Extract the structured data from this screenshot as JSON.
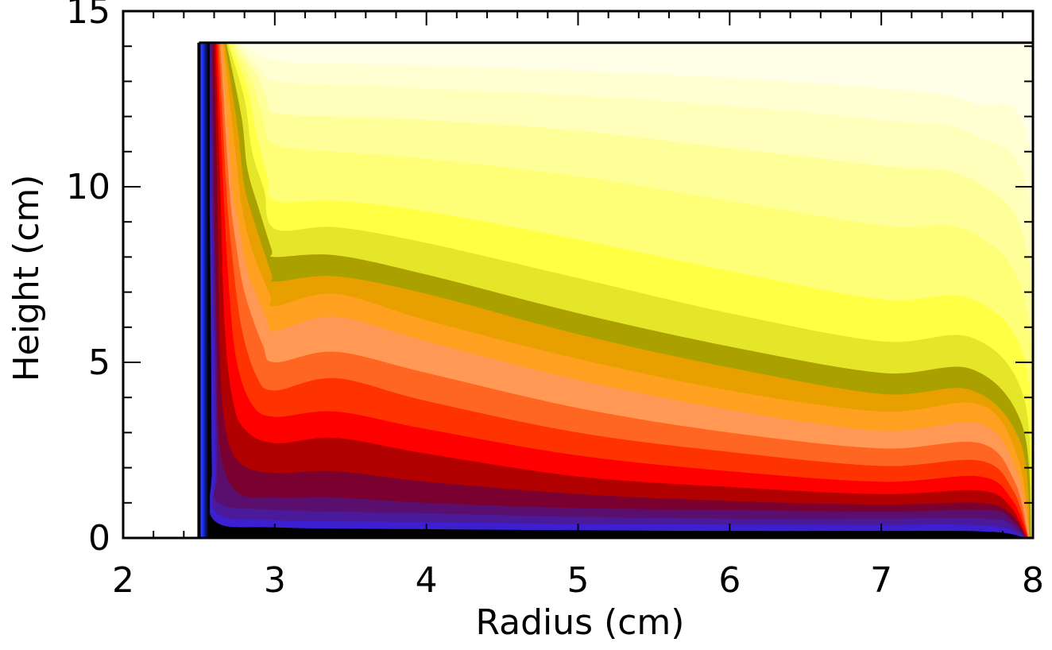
{
  "chart_data": {
    "type": "filled-contour",
    "xlabel": "Radius (cm)",
    "ylabel": "Height (cm)",
    "xlim": [
      2,
      8
    ],
    "ylim": [
      0,
      15
    ],
    "x_ticks": [
      {
        "value": 2,
        "label": "2"
      },
      {
        "value": 3,
        "label": "3"
      },
      {
        "value": 4,
        "label": "4"
      },
      {
        "value": 5,
        "label": "5"
      },
      {
        "value": 6,
        "label": "6"
      },
      {
        "value": 7,
        "label": "7"
      },
      {
        "value": 8,
        "label": "8"
      }
    ],
    "y_ticks": [
      {
        "value": 0,
        "label": "0"
      },
      {
        "value": 5,
        "label": "5"
      },
      {
        "value": 10,
        "label": "10"
      },
      {
        "value": 15,
        "label": "15"
      }
    ],
    "x_minor_step": 0.2,
    "y_minor_step": 1,
    "domain": {
      "r_inner": 2.5,
      "r_outer": 8.0,
      "z_bottom": 0,
      "z_top": 14.1
    },
    "grid": false,
    "legend": "none",
    "fill_colors": [
      "#000000",
      "#0a0a3a",
      "#0d1a8a",
      "#1530c8",
      "#2a3cff",
      "#3b1fd0",
      "#4a1a9a",
      "#5a0f6e",
      "#7a0030",
      "#b00000",
      "#ff0000",
      "#ff3300",
      "#ff6622",
      "#ff9955",
      "#ffa020",
      "#e8a000",
      "#aaa000",
      "#e5e52a",
      "#ffff44",
      "#ffff77",
      "#ffff99",
      "#ffffbb",
      "#ffffd2",
      "#ffffe8"
    ],
    "contours": [
      {
        "level": 0,
        "points": [
          [
            2.56,
            14.1
          ],
          [
            2.57,
            10
          ],
          [
            2.58,
            5
          ],
          [
            2.585,
            2
          ],
          [
            2.6,
            0.5
          ],
          [
            3,
            0.3
          ],
          [
            4,
            0.25
          ],
          [
            5,
            0.22
          ],
          [
            6,
            0.2
          ],
          [
            7,
            0.2
          ],
          [
            7.5,
            0.2
          ],
          [
            7.8,
            0.15
          ],
          [
            7.95,
            0
          ]
        ]
      },
      {
        "level": 1,
        "points": [
          [
            2.57,
            14.1
          ],
          [
            2.58,
            10
          ],
          [
            2.6,
            5
          ],
          [
            2.61,
            2
          ],
          [
            2.62,
            0.7
          ],
          [
            3,
            0.5
          ],
          [
            4,
            0.45
          ],
          [
            5,
            0.4
          ],
          [
            6,
            0.38
          ],
          [
            7,
            0.37
          ],
          [
            7.5,
            0.38
          ],
          [
            7.8,
            0.3
          ],
          [
            7.95,
            0
          ]
        ]
      },
      {
        "level": 2,
        "points": [
          [
            2.58,
            14.1
          ],
          [
            2.59,
            10
          ],
          [
            2.61,
            5
          ],
          [
            2.62,
            2
          ],
          [
            2.63,
            1
          ],
          [
            3,
            0.8
          ],
          [
            4,
            0.7
          ],
          [
            5,
            0.6
          ],
          [
            6,
            0.55
          ],
          [
            7,
            0.55
          ],
          [
            7.7,
            0.55
          ],
          [
            7.85,
            0.4
          ],
          [
            7.95,
            0
          ]
        ]
      },
      {
        "level": 3,
        "points": [
          [
            2.59,
            14.1
          ],
          [
            2.6,
            10
          ],
          [
            2.62,
            5
          ],
          [
            2.64,
            2.5
          ],
          [
            2.75,
            1.3
          ],
          [
            3,
            1.15
          ],
          [
            3.4,
            1.15
          ],
          [
            4,
            1
          ],
          [
            5,
            0.85
          ],
          [
            6,
            0.8
          ],
          [
            7,
            0.75
          ],
          [
            7.7,
            0.8
          ],
          [
            7.85,
            0.55
          ],
          [
            7.96,
            0
          ]
        ]
      },
      {
        "level": 4,
        "points": [
          [
            2.6,
            14.1
          ],
          [
            2.62,
            10
          ],
          [
            2.64,
            5
          ],
          [
            2.68,
            3
          ],
          [
            2.78,
            2.1
          ],
          [
            3,
            1.85
          ],
          [
            3.4,
            1.9
          ],
          [
            4,
            1.6
          ],
          [
            5,
            1.25
          ],
          [
            6,
            1.05
          ],
          [
            7,
            0.95
          ],
          [
            7.65,
            1.0
          ],
          [
            7.85,
            0.7
          ],
          [
            7.96,
            0
          ]
        ]
      },
      {
        "level": 5,
        "points": [
          [
            2.61,
            14.1
          ],
          [
            2.64,
            10
          ],
          [
            2.67,
            6
          ],
          [
            2.72,
            4
          ],
          [
            2.8,
            3.1
          ],
          [
            3,
            2.7
          ],
          [
            3.4,
            2.85
          ],
          [
            4,
            2.4
          ],
          [
            5,
            1.75
          ],
          [
            6,
            1.45
          ],
          [
            7,
            1.25
          ],
          [
            7.65,
            1.35
          ],
          [
            7.85,
            0.9
          ],
          [
            7.96,
            0
          ]
        ]
      },
      {
        "level": 6,
        "points": [
          [
            2.62,
            14.1
          ],
          [
            2.66,
            10
          ],
          [
            2.7,
            7
          ],
          [
            2.75,
            5
          ],
          [
            2.85,
            3.8
          ],
          [
            3,
            3.45
          ],
          [
            3.4,
            3.6
          ],
          [
            4,
            3.1
          ],
          [
            5,
            2.35
          ],
          [
            6,
            1.9
          ],
          [
            7,
            1.6
          ],
          [
            7.65,
            1.75
          ],
          [
            7.86,
            1.1
          ],
          [
            7.97,
            0
          ]
        ]
      },
      {
        "level": 7,
        "points": [
          [
            2.63,
            14.1
          ],
          [
            2.68,
            10
          ],
          [
            2.72,
            8
          ],
          [
            2.78,
            6
          ],
          [
            2.88,
            4.6
          ],
          [
            3,
            4.2
          ],
          [
            3.4,
            4.55
          ],
          [
            4,
            3.9
          ],
          [
            5,
            3.0
          ],
          [
            6,
            2.45
          ],
          [
            7,
            2.05
          ],
          [
            7.65,
            2.2
          ],
          [
            7.87,
            1.35
          ],
          [
            7.97,
            0
          ]
        ]
      },
      {
        "level": 8,
        "points": [
          [
            2.64,
            14.1
          ],
          [
            2.7,
            10
          ],
          [
            2.74,
            8.5
          ],
          [
            2.8,
            7
          ],
          [
            2.92,
            5.5
          ],
          [
            3,
            5.0
          ],
          [
            3.4,
            5.3
          ],
          [
            4,
            4.7
          ],
          [
            5,
            3.7
          ],
          [
            6,
            3.0
          ],
          [
            7,
            2.55
          ],
          [
            7.65,
            2.7
          ],
          [
            7.88,
            1.6
          ],
          [
            7.97,
            0
          ]
        ]
      },
      {
        "level": 9,
        "points": [
          [
            2.65,
            14.1
          ],
          [
            2.72,
            10
          ],
          [
            2.76,
            9
          ],
          [
            2.82,
            7.6
          ],
          [
            2.95,
            6.2
          ],
          [
            3,
            5.9
          ],
          [
            3.4,
            6.3
          ],
          [
            4,
            5.6
          ],
          [
            5,
            4.5
          ],
          [
            6,
            3.65
          ],
          [
            7,
            3.05
          ],
          [
            7.65,
            3.25
          ],
          [
            7.89,
            1.95
          ],
          [
            7.98,
            0
          ]
        ]
      },
      {
        "level": 10,
        "points": [
          [
            2.66,
            14.1
          ],
          [
            2.74,
            11
          ],
          [
            2.78,
            9.5
          ],
          [
            2.85,
            8.2
          ],
          [
            2.97,
            6.9
          ],
          [
            3,
            6.6
          ],
          [
            3.4,
            6.95
          ],
          [
            4,
            6.2
          ],
          [
            5,
            5.1
          ],
          [
            6,
            4.2
          ],
          [
            7,
            3.6
          ],
          [
            7.65,
            3.8
          ],
          [
            7.9,
            2.3
          ],
          [
            7.98,
            0
          ]
        ]
      },
      {
        "level": 11,
        "points": [
          [
            2.67,
            14.1
          ],
          [
            2.76,
            11.5
          ],
          [
            2.8,
            10
          ],
          [
            2.88,
            8.8
          ],
          [
            2.98,
            7.5
          ],
          [
            3,
            7.3
          ],
          [
            3.4,
            7.45
          ],
          [
            4,
            6.95
          ],
          [
            5,
            5.8
          ],
          [
            6,
            4.85
          ],
          [
            7,
            4.1
          ],
          [
            7.6,
            4.2
          ],
          [
            7.92,
            2.7
          ],
          [
            7.98,
            0
          ]
        ]
      },
      {
        "level": 12,
        "points": [
          [
            2.68,
            14.1
          ],
          [
            2.78,
            12
          ],
          [
            2.82,
            10.5
          ],
          [
            2.9,
            9.3
          ],
          [
            2.98,
            8.2
          ],
          [
            3,
            8.0
          ],
          [
            3.4,
            8.05
          ],
          [
            4,
            7.5
          ],
          [
            5,
            6.4
          ],
          [
            6,
            5.45
          ],
          [
            7,
            4.7
          ],
          [
            7.6,
            4.8
          ],
          [
            7.93,
            3.2
          ],
          [
            7.99,
            0
          ]
        ]
      },
      {
        "level": 13,
        "points": [
          [
            2.69,
            14.1
          ],
          [
            2.8,
            12.5
          ],
          [
            2.85,
            11
          ],
          [
            2.93,
            9.9
          ],
          [
            3,
            8.8
          ],
          [
            3.4,
            8.85
          ],
          [
            4,
            8.4
          ],
          [
            5,
            7.4
          ],
          [
            6,
            6.4
          ],
          [
            7,
            5.6
          ],
          [
            7.6,
            5.7
          ],
          [
            7.94,
            4.0
          ],
          [
            7.99,
            0
          ]
        ]
      },
      {
        "level": 14,
        "points": [
          [
            2.7,
            14.1
          ],
          [
            2.82,
            12.8
          ],
          [
            2.88,
            11.5
          ],
          [
            2.95,
            10.3
          ],
          [
            3,
            9.6
          ],
          [
            3.4,
            9.6
          ],
          [
            4,
            9.3
          ],
          [
            5,
            8.5
          ],
          [
            6,
            7.6
          ],
          [
            7,
            6.8
          ],
          [
            7.6,
            6.8
          ],
          [
            7.95,
            5.0
          ],
          [
            7.99,
            0
          ]
        ]
      },
      {
        "level": 15,
        "points": [
          [
            2.72,
            14.1
          ],
          [
            2.85,
            13
          ],
          [
            2.92,
            12
          ],
          [
            3,
            11.2
          ],
          [
            3.4,
            11.0
          ],
          [
            4,
            10.8
          ],
          [
            5,
            10.3
          ],
          [
            6,
            9.6
          ],
          [
            7,
            8.9
          ],
          [
            7.6,
            8.7
          ],
          [
            7.96,
            6.5
          ],
          [
            7.99,
            0
          ]
        ]
      },
      {
        "level": 16,
        "points": [
          [
            2.73,
            14.1
          ],
          [
            2.88,
            13.2
          ],
          [
            2.95,
            12.5
          ],
          [
            3,
            12.1
          ],
          [
            3.4,
            12.0
          ],
          [
            4,
            11.9
          ],
          [
            5,
            11.6
          ],
          [
            6,
            11.1
          ],
          [
            7,
            10.6
          ],
          [
            7.6,
            10.2
          ],
          [
            7.97,
            8.0
          ],
          [
            8.0,
            0
          ]
        ]
      },
      {
        "level": 17,
        "points": [
          [
            2.75,
            14.1
          ],
          [
            2.9,
            13.4
          ],
          [
            3,
            13.0
          ],
          [
            3.5,
            12.9
          ],
          [
            4,
            12.8
          ],
          [
            5,
            12.6
          ],
          [
            6,
            12.3
          ],
          [
            7,
            11.9
          ],
          [
            7.6,
            11.5
          ],
          [
            7.98,
            9.5
          ],
          [
            8.0,
            0
          ]
        ]
      },
      {
        "level": 18,
        "points": [
          [
            2.78,
            14.1
          ],
          [
            3,
            13.6
          ],
          [
            3.5,
            13.5
          ],
          [
            4,
            13.45
          ],
          [
            5,
            13.3
          ],
          [
            6,
            13.1
          ],
          [
            7,
            12.8
          ],
          [
            7.6,
            12.4
          ],
          [
            7.98,
            11.0
          ],
          [
            8.0,
            0
          ]
        ]
      }
    ]
  }
}
